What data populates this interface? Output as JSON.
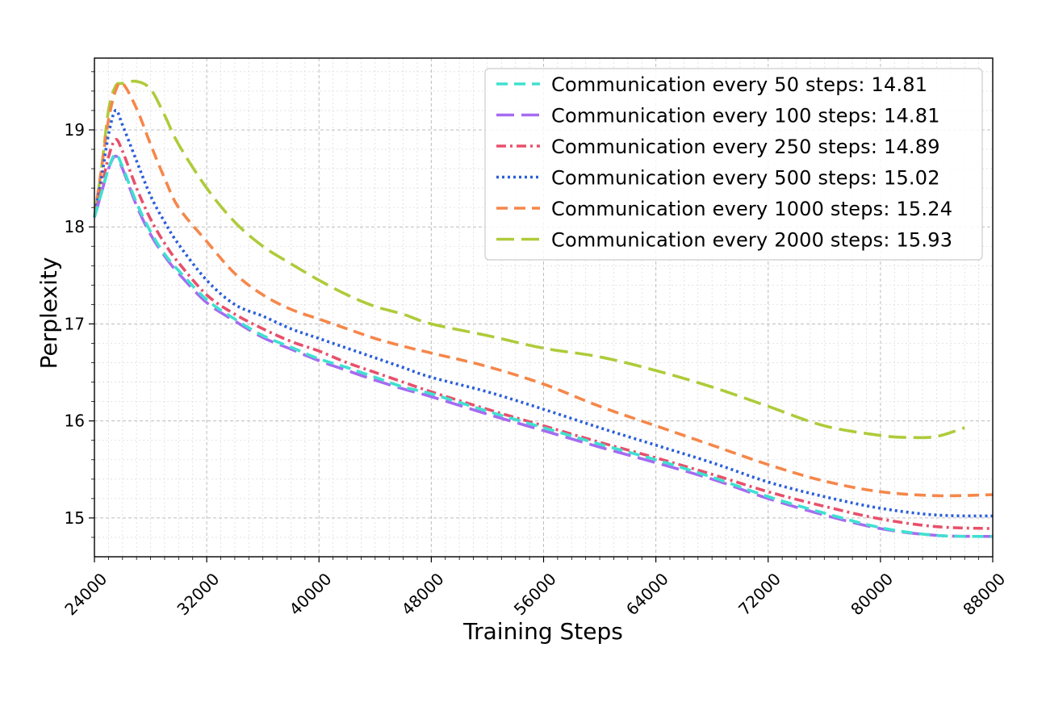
{
  "chart_data": {
    "type": "line",
    "title": "",
    "xlabel": "Training Steps",
    "ylabel": "Perplexity",
    "xlim": [
      24000,
      88000
    ],
    "ylim": [
      14.6,
      19.74
    ],
    "xticks": [
      24000,
      32000,
      40000,
      48000,
      56000,
      64000,
      72000,
      80000,
      88000
    ],
    "xtick_labels": [
      "24000",
      "32000",
      "40000",
      "48000",
      "56000",
      "64000",
      "72000",
      "80000",
      "88000"
    ],
    "yticks": [
      15,
      16,
      17,
      18,
      19
    ],
    "ytick_labels": [
      "15",
      "16",
      "17",
      "18",
      "19"
    ],
    "grid": true,
    "legend_position": "top-right",
    "series": [
      {
        "name": "Communication every 50 steps: 14.81",
        "color": "#40E0D0",
        "dash": "dashed",
        "x": [
          24000,
          24500,
          25000,
          25500,
          26000,
          27000,
          28000,
          29000,
          30000,
          32000,
          34000,
          36000,
          38000,
          40000,
          42000,
          44000,
          46000,
          48000,
          52000,
          56000,
          60000,
          64000,
          68000,
          72000,
          76000,
          80000,
          84000,
          88000
        ],
        "values": [
          18.1,
          18.35,
          18.6,
          18.75,
          18.62,
          18.25,
          17.95,
          17.72,
          17.55,
          17.25,
          17.05,
          16.88,
          16.76,
          16.64,
          16.55,
          16.45,
          16.35,
          16.28,
          16.1,
          15.93,
          15.76,
          15.6,
          15.42,
          15.22,
          15.05,
          14.9,
          14.82,
          14.81
        ]
      },
      {
        "name": "Communication every 100 steps: 14.81",
        "color": "#A66BF0",
        "dash": "longdash",
        "x": [
          24000,
          24500,
          25000,
          25500,
          26000,
          27000,
          28000,
          29000,
          30000,
          32000,
          34000,
          36000,
          38000,
          40000,
          42000,
          44000,
          46000,
          48000,
          52000,
          56000,
          60000,
          64000,
          68000,
          72000,
          76000,
          80000,
          84000,
          88000
        ],
        "values": [
          18.1,
          18.35,
          18.6,
          18.73,
          18.6,
          18.22,
          17.92,
          17.7,
          17.52,
          17.22,
          17.03,
          16.86,
          16.74,
          16.62,
          16.52,
          16.42,
          16.33,
          16.25,
          16.07,
          15.9,
          15.73,
          15.57,
          15.4,
          15.2,
          15.03,
          14.89,
          14.82,
          14.81
        ]
      },
      {
        "name": "Communication every 250 steps: 14.89",
        "color": "#E8506A",
        "dash": "dashdot",
        "x": [
          24000,
          24500,
          25000,
          25500,
          26000,
          27000,
          28000,
          29000,
          30000,
          32000,
          34000,
          36000,
          38000,
          40000,
          42000,
          44000,
          46000,
          48000,
          52000,
          56000,
          60000,
          64000,
          68000,
          72000,
          76000,
          80000,
          84000,
          88000
        ],
        "values": [
          18.1,
          18.4,
          18.72,
          18.9,
          18.78,
          18.4,
          18.08,
          17.83,
          17.63,
          17.3,
          17.1,
          16.95,
          16.82,
          16.72,
          16.6,
          16.5,
          16.4,
          16.3,
          16.12,
          15.95,
          15.78,
          15.62,
          15.45,
          15.27,
          15.12,
          14.99,
          14.91,
          14.89
        ]
      },
      {
        "name": "Communication every 500 steps: 15.02",
        "color": "#2B5FD9",
        "dash": "dotted",
        "x": [
          24000,
          24500,
          25000,
          25500,
          26000,
          27000,
          28000,
          29000,
          30000,
          32000,
          34000,
          36000,
          38000,
          40000,
          42000,
          44000,
          46000,
          48000,
          52000,
          56000,
          60000,
          64000,
          68000,
          72000,
          76000,
          80000,
          84000,
          88000
        ],
        "values": [
          18.1,
          18.5,
          18.95,
          19.2,
          19.05,
          18.68,
          18.32,
          18.05,
          17.82,
          17.45,
          17.2,
          17.08,
          16.95,
          16.85,
          16.75,
          16.65,
          16.55,
          16.45,
          16.3,
          16.12,
          15.93,
          15.75,
          15.57,
          15.37,
          15.22,
          15.1,
          15.03,
          15.02
        ]
      },
      {
        "name": "Communication every 1000 steps: 15.24",
        "color": "#F5874A",
        "dash": "dashed",
        "x": [
          24000,
          24500,
          25000,
          25500,
          26000,
          27000,
          28000,
          29000,
          30000,
          32000,
          34000,
          36000,
          38000,
          40000,
          42000,
          44000,
          46000,
          48000,
          52000,
          56000,
          60000,
          64000,
          68000,
          72000,
          76000,
          80000,
          84000,
          88000
        ],
        "values": [
          18.1,
          18.6,
          19.1,
          19.4,
          19.48,
          19.22,
          18.85,
          18.5,
          18.2,
          17.85,
          17.52,
          17.3,
          17.15,
          17.05,
          16.95,
          16.85,
          16.77,
          16.7,
          16.56,
          16.38,
          16.15,
          15.95,
          15.75,
          15.55,
          15.38,
          15.27,
          15.23,
          15.24
        ]
      },
      {
        "name": "Communication every 2000 steps: 15.93",
        "color": "#AECB3A",
        "dash": "longdash",
        "x": [
          24000,
          24500,
          25000,
          25500,
          26000,
          27000,
          28000,
          29000,
          30000,
          32000,
          34000,
          36000,
          38000,
          40000,
          42000,
          44000,
          46000,
          48000,
          52000,
          56000,
          60000,
          64000,
          68000,
          72000,
          76000,
          80000,
          82000,
          84000,
          86000
        ],
        "values": [
          18.1,
          18.6,
          19.2,
          19.45,
          19.48,
          19.5,
          19.42,
          19.15,
          18.85,
          18.4,
          18.05,
          17.8,
          17.62,
          17.45,
          17.3,
          17.18,
          17.1,
          17.0,
          16.88,
          16.75,
          16.66,
          16.52,
          16.35,
          16.15,
          15.95,
          15.85,
          15.83,
          15.84,
          15.93
        ]
      }
    ]
  }
}
